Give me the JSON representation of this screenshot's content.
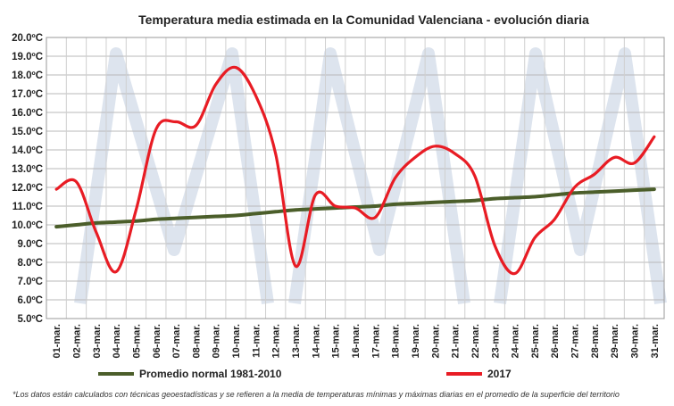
{
  "chart_data": {
    "type": "line",
    "title": "Temperatura media estimada en la Comunidad Valenciana - evolución diaria",
    "xlabel": "",
    "ylabel": "",
    "ylim": [
      5,
      20
    ],
    "y_ticks": [
      "5.0ºC",
      "6.0ºC",
      "7.0ºC",
      "8.0ºC",
      "9.0ºC",
      "10.0ºC",
      "11.0ºC",
      "12.0ºC",
      "13.0ºC",
      "14.0ºC",
      "15.0ºC",
      "16.0ºC",
      "17.0ºC",
      "18.0ºC",
      "19.0ºC",
      "20.0ºC"
    ],
    "categories": [
      "01-mar.",
      "02-mar.",
      "03-mar.",
      "04-mar.",
      "05-mar.",
      "06-mar.",
      "07-mar.",
      "08-mar.",
      "09-mar.",
      "10-mar.",
      "11-mar.",
      "12-mar.",
      "13-mar.",
      "14-mar.",
      "15-mar.",
      "16-mar.",
      "17-mar.",
      "18-mar.",
      "19-mar.",
      "20-mar.",
      "21-mar.",
      "22-mar.",
      "23-mar.",
      "24-mar.",
      "25-mar.",
      "26-mar.",
      "27-mar.",
      "28-mar.",
      "29-mar.",
      "30-mar.",
      "31-mar."
    ],
    "series": [
      {
        "name": "Promedio normal 1981-2010",
        "color": "#4b5e2a",
        "values": [
          9.9,
          10.0,
          10.1,
          10.15,
          10.2,
          10.3,
          10.35,
          10.4,
          10.45,
          10.5,
          10.6,
          10.7,
          10.8,
          10.85,
          10.9,
          10.95,
          11.0,
          11.1,
          11.15,
          11.2,
          11.25,
          11.3,
          11.4,
          11.45,
          11.5,
          11.6,
          11.7,
          11.75,
          11.8,
          11.85,
          11.9
        ]
      },
      {
        "name": "2017",
        "color": "#e81c24",
        "values": [
          11.9,
          12.3,
          9.6,
          7.5,
          10.8,
          15.1,
          15.5,
          15.3,
          17.5,
          18.4,
          16.9,
          13.8,
          7.8,
          11.6,
          11.0,
          10.9,
          10.4,
          12.5,
          13.6,
          14.2,
          13.8,
          12.6,
          8.9,
          7.4,
          9.3,
          10.3,
          12.0,
          12.7,
          13.6,
          13.3,
          14.7
        ]
      }
    ],
    "grid": true,
    "legend_position": "bottom"
  },
  "footnote": "*Los datos están calculados con técnicas geoestadísticas y se refieren a la media de temperaturas mínimas y máximas diarias en el promedio de la superficie del territorio"
}
